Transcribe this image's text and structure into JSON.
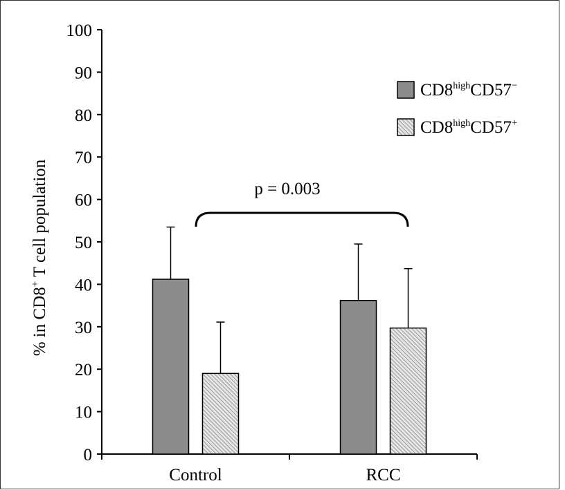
{
  "chart_data": {
    "type": "bar",
    "title": "",
    "xlabel": "",
    "ylabel": {
      "prefix": "% in CD8",
      "sup": "+",
      "suffix": " T cell population"
    },
    "ylim": [
      0,
      100
    ],
    "yticks": [
      0,
      10,
      20,
      30,
      40,
      50,
      60,
      70,
      80,
      90,
      100
    ],
    "categories": [
      "Control",
      "RCC"
    ],
    "series": [
      {
        "name": "CD8highCD57−",
        "name_parts": {
          "base": "CD8",
          "sup1": "high",
          "mid": "CD57",
          "sup2": "−"
        },
        "values": [
          41.2,
          36.2
        ],
        "errors": [
          12.3,
          13.3
        ],
        "color": "#8c8c8c",
        "pattern": "solid"
      },
      {
        "name": "CD8highCD57+",
        "name_parts": {
          "base": "CD8",
          "sup1": "high",
          "mid": "CD57",
          "sup2": "+"
        },
        "values": [
          19.0,
          29.7
        ],
        "errors": [
          12.1,
          14.0
        ],
        "color": "#d0d0d0",
        "pattern": "hatched"
      }
    ],
    "annotation": {
      "text": "p = 0.003"
    },
    "legend_position": "top-right",
    "grid": false
  }
}
